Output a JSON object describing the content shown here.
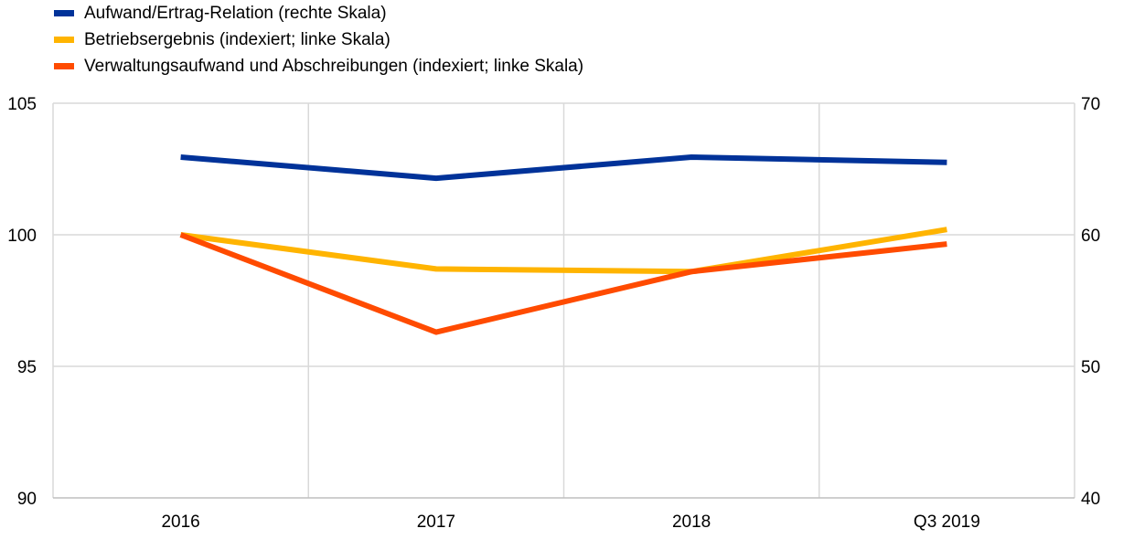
{
  "chart_data": {
    "type": "line",
    "categories": [
      "2016",
      "2017",
      "2018",
      "Q3 2019"
    ],
    "series": [
      {
        "name": "Aufwand/Ertrag-Relation (rechte Skala)",
        "axis": "right",
        "color": "#003299",
        "values": [
          65.9,
          64.3,
          65.9,
          65.5
        ]
      },
      {
        "name": "Betriebsergebnis (indexiert; linke Skala)",
        "axis": "left",
        "color": "#FFB400",
        "values": [
          100.0,
          98.7,
          98.6,
          100.2
        ]
      },
      {
        "name": "Verwaltungsaufwand und Abschreibungen (indexiert; linke Skala)",
        "axis": "left",
        "color": "#FF4B00",
        "values": [
          100.0,
          96.3,
          98.6,
          99.65
        ]
      }
    ],
    "left_axis": {
      "ylim": [
        90,
        105
      ],
      "ticks": [
        "90",
        "95",
        "100",
        "105"
      ]
    },
    "right_axis": {
      "ylim": [
        40,
        70
      ],
      "ticks": [
        "40",
        "50",
        "60",
        "70"
      ]
    },
    "grid": true,
    "legend_position": "top-left"
  }
}
